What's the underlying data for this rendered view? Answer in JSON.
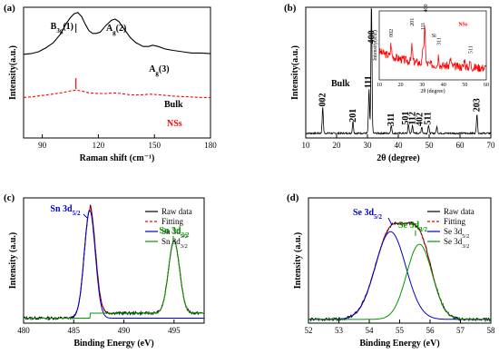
{
  "chart_data": [
    {
      "panel": "(a)",
      "type": "line",
      "xlabel": "Raman shift (cm⁻¹)",
      "ylabel": "Intensity(a.u.)",
      "xlim": [
        80,
        180
      ],
      "xticks": [
        90,
        120,
        150,
        180
      ],
      "ylim": [
        0,
        1
      ],
      "y_tick_labels": false,
      "series": [
        {
          "name": "Bulk",
          "color": "#000000",
          "style": "solid",
          "points": [
            [
              80,
              0.64
            ],
            [
              84,
              0.645
            ],
            [
              88,
              0.66
            ],
            [
              92,
              0.69
            ],
            [
              96,
              0.73
            ],
            [
              100,
              0.8
            ],
            [
              103,
              0.88
            ],
            [
              105,
              0.92
            ],
            [
              107,
              0.95
            ],
            [
              109,
              0.96
            ],
            [
              111,
              0.93
            ],
            [
              113,
              0.87
            ],
            [
              115,
              0.82
            ],
            [
              117,
              0.8
            ],
            [
              119,
              0.8
            ],
            [
              121,
              0.81
            ],
            [
              124,
              0.86
            ],
            [
              127,
              0.9
            ],
            [
              129,
              0.91
            ],
            [
              131,
              0.89
            ],
            [
              134,
              0.83
            ],
            [
              137,
              0.77
            ],
            [
              140,
              0.73
            ],
            [
              144,
              0.7
            ],
            [
              147,
              0.7
            ],
            [
              149,
              0.71
            ],
            [
              152,
              0.7
            ],
            [
              156,
              0.68
            ],
            [
              160,
              0.67
            ],
            [
              165,
              0.66
            ],
            [
              170,
              0.65
            ],
            [
              175,
              0.65
            ],
            [
              180,
              0.645
            ]
          ]
        },
        {
          "name": "NSs",
          "color": "#ff0000",
          "style": "dashed",
          "points": [
            [
              80,
              0.31
            ],
            [
              85,
              0.315
            ],
            [
              90,
              0.325
            ],
            [
              95,
              0.335
            ],
            [
              100,
              0.345
            ],
            [
              105,
              0.36
            ],
            [
              108,
              0.365
            ],
            [
              111,
              0.36
            ],
            [
              115,
              0.345
            ],
            [
              120,
              0.34
            ],
            [
              125,
              0.34
            ],
            [
              128,
              0.345
            ],
            [
              132,
              0.34
            ],
            [
              137,
              0.33
            ],
            [
              142,
              0.33
            ],
            [
              148,
              0.335
            ],
            [
              153,
              0.33
            ],
            [
              160,
              0.32
            ],
            [
              168,
              0.315
            ],
            [
              175,
              0.31
            ],
            [
              180,
              0.31
            ]
          ]
        }
      ],
      "annotations": {
        "peaks": [
          {
            "label": "B",
            "sub": "3g",
            "suffix": "(1)",
            "x": 108
          },
          {
            "label": "A",
            "sub": "g",
            "suffix": "(2)",
            "x": 129
          },
          {
            "label": "A",
            "sub": "g",
            "suffix": "(3)",
            "x": 150
          }
        ],
        "curve_labels": [
          {
            "text": "Bulk",
            "color": "#000000"
          },
          {
            "text": "NSs",
            "color": "#ff0000"
          }
        ]
      }
    },
    {
      "panel": "(b)",
      "type": "line",
      "xlabel": "2θ (degree)",
      "ylabel": "Intensity(a.u.)",
      "xlim": [
        10,
        70
      ],
      "xticks": [
        10,
        20,
        30,
        40,
        50,
        60,
        70
      ],
      "ylim": [
        0,
        1
      ],
      "y_tick_labels": false,
      "series": [
        {
          "name": "Bulk",
          "color": "#000000",
          "style": "solid",
          "peaks": [
            [
              15.5,
              0.2
            ],
            [
              25.3,
              0.09
            ],
            [
              30.5,
              0.34
            ],
            [
              31.3,
              1.0
            ],
            [
              37.7,
              0.06
            ],
            [
              43.3,
              0.07
            ],
            [
              44.6,
              0.06
            ],
            [
              47.6,
              0.05
            ],
            [
              49.8,
              0.06
            ],
            [
              52.5,
              0.05
            ],
            [
              65.5,
              0.15
            ]
          ],
          "baseline": 0.03
        }
      ],
      "peak_labels": [
        "002",
        "201",
        "111",
        "400",
        "311",
        "501",
        "112",
        "402",
        "511",
        "203"
      ],
      "text_labels": [
        "Bulk"
      ],
      "inset": {
        "xlabel": "2θ (degree)",
        "ylabel": "Intensity(a.u.)",
        "xlim": [
          10,
          60
        ],
        "xticks": [
          10,
          20,
          30,
          40,
          50,
          60
        ],
        "series_color": "#ff0000",
        "peaks": [
          [
            15.5,
            0.3
          ],
          [
            25.3,
            0.4
          ],
          [
            30.5,
            0.45
          ],
          [
            31.3,
            0.95
          ],
          [
            37.7,
            0.25
          ],
          [
            43.3,
            0.2
          ],
          [
            49.8,
            0.2
          ],
          [
            52.5,
            0.15
          ]
        ],
        "peak_labels": [
          "002",
          "201",
          "111",
          "400",
          "311",
          "511"
        ],
        "text_labels": [
          "Si",
          "NSs"
        ]
      }
    },
    {
      "panel": "(c)",
      "type": "line",
      "xlabel": "Binding Energy (eV)",
      "ylabel": "Intensity (a.u.)",
      "xlim": [
        480,
        498
      ],
      "xticks": [
        480,
        485,
        490,
        495
      ],
      "ylim": [
        0,
        1
      ],
      "y_tick_labels": false,
      "legend": {
        "placement": "top-right",
        "entries": [
          {
            "label": "Raw data",
            "color": "#000000",
            "style": "solid"
          },
          {
            "label": "Fitting",
            "color": "#ff0000",
            "style": "dashed"
          },
          {
            "label": "Sn 3d",
            "sub": "5/2",
            "color": "#0000cc",
            "style": "solid"
          },
          {
            "label": "Sn 3d",
            "sub": "3/2",
            "color": "#009900",
            "style": "solid"
          }
        ]
      },
      "components": [
        {
          "name": "Sn 3d5/2",
          "center": 486.6,
          "height": 0.86,
          "width": 0.55,
          "color": "#0000cc"
        },
        {
          "name": "Sn 3d3/2",
          "center": 495.0,
          "height": 0.58,
          "width": 0.55,
          "color": "#009900"
        }
      ],
      "baseline": 0.04,
      "peak_labels": [
        {
          "text": "Sn 3d",
          "sub": "5/2",
          "color": "#0000cc"
        },
        {
          "text": "Sn 3d",
          "sub": "3/2",
          "color": "#009900"
        }
      ]
    },
    {
      "panel": "(d)",
      "type": "line",
      "xlabel": "Binding Energy (eV)",
      "ylabel": "Intensity (a.u.)",
      "xlim": [
        52,
        58
      ],
      "xticks": [
        52,
        53,
        54,
        55,
        56,
        57,
        58
      ],
      "ylim": [
        0,
        1
      ],
      "y_tick_labels": false,
      "legend": {
        "placement": "top-right",
        "entries": [
          {
            "label": "Raw data",
            "color": "#000000",
            "style": "solid"
          },
          {
            "label": "Fitting",
            "color": "#ff0000",
            "style": "dashed"
          },
          {
            "label": "Se 3d",
            "sub": "5/2",
            "color": "#0000cc",
            "style": "solid"
          },
          {
            "label": "Se 3d",
            "sub": "3/2",
            "color": "#009900",
            "style": "solid"
          }
        ]
      },
      "components": [
        {
          "name": "Se 3d5/2",
          "center": 54.7,
          "height": 0.7,
          "width": 0.5,
          "color": "#0000cc"
        },
        {
          "name": "Se 3d3/2",
          "center": 55.65,
          "height": 0.6,
          "width": 0.42,
          "color": "#009900"
        }
      ],
      "baseline": 0.03,
      "peak_labels": [
        {
          "text": "Se 3d",
          "sub": "5/2",
          "color": "#0000cc"
        },
        {
          "text": "Se 3d",
          "sub": "3/2",
          "color": "#009900"
        }
      ]
    }
  ]
}
